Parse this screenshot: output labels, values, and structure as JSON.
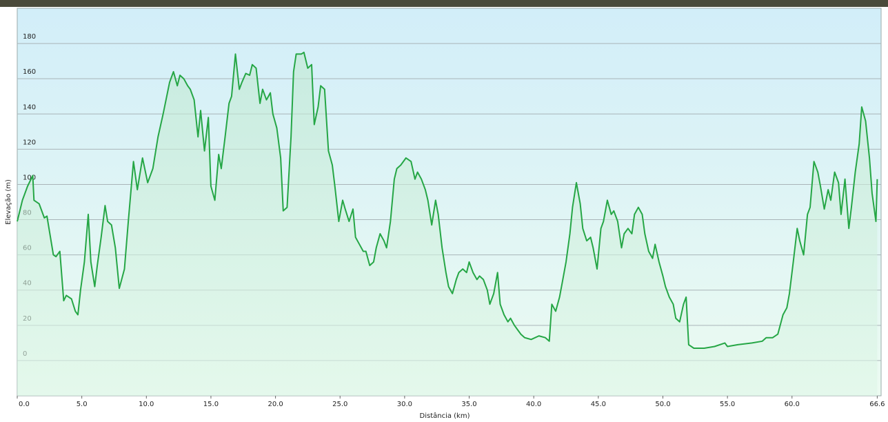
{
  "chart_data": {
    "type": "line",
    "x_label": "Distância  (km)",
    "y_label": "Elevação (m)",
    "series": [
      {
        "color": "#25a645",
        "x": [
          0.0,
          0.4,
          0.8,
          1.2,
          1.3,
          1.7,
          2.1,
          2.3,
          2.8,
          3.0,
          3.3,
          3.6,
          3.8,
          4.2,
          4.5,
          4.7,
          4.9,
          5.2,
          5.5,
          5.7,
          6.0,
          6.2,
          6.5,
          6.8,
          7.0,
          7.3,
          7.6,
          7.9,
          8.3,
          8.6,
          9.0,
          9.3,
          9.7,
          10.1,
          10.5,
          10.9,
          11.3,
          11.8,
          12.1,
          12.4,
          12.6,
          12.9,
          13.2,
          13.4,
          13.7,
          14.0,
          14.2,
          14.5,
          14.8,
          15.0,
          15.3,
          15.6,
          15.8,
          16.1,
          16.4,
          16.6,
          16.9,
          17.2,
          17.4,
          17.7,
          18.0,
          18.2,
          18.5,
          18.8,
          19.0,
          19.3,
          19.6,
          19.8,
          20.1,
          20.4,
          20.6,
          20.9,
          21.2,
          21.4,
          21.6,
          22.0,
          22.2,
          22.5,
          22.8,
          23.0,
          23.3,
          23.5,
          23.8,
          24.1,
          24.4,
          24.6,
          24.9,
          25.2,
          25.4,
          25.7,
          26.0,
          26.2,
          26.5,
          26.8,
          27.0,
          27.3,
          27.6,
          27.8,
          28.1,
          28.4,
          28.6,
          28.9,
          29.2,
          29.4,
          29.7,
          30.1,
          30.5,
          30.8,
          31.0,
          31.3,
          31.6,
          31.8,
          32.1,
          32.4,
          32.6,
          32.9,
          33.2,
          33.4,
          33.7,
          34.0,
          34.2,
          34.5,
          34.8,
          35.0,
          35.3,
          35.6,
          35.8,
          36.1,
          36.4,
          36.6,
          36.9,
          37.2,
          37.4,
          37.7,
          38.0,
          38.2,
          38.5,
          38.8,
          39.0,
          39.3,
          39.8,
          40.4,
          40.9,
          41.2,
          41.4,
          41.7,
          42.0,
          42.2,
          42.5,
          42.8,
          43.0,
          43.3,
          43.6,
          43.8,
          44.1,
          44.4,
          44.6,
          44.9,
          45.2,
          45.4,
          45.7,
          46.0,
          46.2,
          46.5,
          46.8,
          47.0,
          47.3,
          47.6,
          47.8,
          48.1,
          48.4,
          48.6,
          48.9,
          49.2,
          49.4,
          49.7,
          50.0,
          50.2,
          50.5,
          50.8,
          51.0,
          51.3,
          51.6,
          51.8,
          52.0,
          52.4,
          53.2,
          54.0,
          54.8,
          55.0,
          55.8,
          56.9,
          57.7,
          58.0,
          58.5,
          58.9,
          59.3,
          59.6,
          59.8,
          60.1,
          60.4,
          60.6,
          60.9,
          61.2,
          61.4,
          61.7,
          62.0,
          62.2,
          62.5,
          62.8,
          63.0,
          63.3,
          63.6,
          63.8,
          64.1,
          64.4,
          64.6,
          64.9,
          65.2,
          65.4,
          65.7,
          66.0,
          66.2,
          66.5,
          66.6
        ],
        "values": [
          79,
          91,
          99,
          105,
          91,
          89,
          81,
          82,
          60,
          59,
          62,
          34,
          37,
          35,
          28,
          26,
          40,
          56,
          83,
          56,
          42,
          54,
          70,
          88,
          79,
          77,
          64,
          41,
          52,
          79,
          113,
          97,
          115,
          101,
          109,
          127,
          140,
          158,
          164,
          156,
          162,
          160,
          156,
          154,
          148,
          127,
          142,
          119,
          138,
          99,
          91,
          117,
          109,
          127,
          146,
          150,
          174,
          154,
          158,
          163,
          162,
          168,
          166,
          146,
          154,
          148,
          152,
          140,
          132,
          115,
          85,
          87,
          127,
          164,
          174,
          174,
          175,
          166,
          168,
          134,
          144,
          156,
          154,
          119,
          111,
          99,
          79,
          91,
          86,
          79,
          86,
          70,
          66,
          62,
          62,
          54,
          56,
          64,
          72,
          68,
          64,
          79,
          103,
          109,
          111,
          115,
          113,
          103,
          107,
          103,
          97,
          91,
          77,
          91,
          83,
          64,
          50,
          42,
          38,
          46,
          50,
          52,
          50,
          56,
          50,
          46,
          48,
          46,
          40,
          32,
          38,
          50,
          32,
          26,
          22,
          24,
          20,
          17,
          15,
          13,
          12,
          14,
          13,
          11,
          32,
          28,
          36,
          44,
          56,
          72,
          87,
          101,
          89,
          75,
          68,
          70,
          64,
          52,
          75,
          79,
          91,
          83,
          85,
          79,
          64,
          72,
          75,
          72,
          83,
          87,
          83,
          72,
          62,
          58,
          66,
          56,
          48,
          42,
          36,
          32,
          24,
          22,
          32,
          36,
          9,
          7,
          7,
          8,
          10,
          8,
          9,
          10,
          11,
          13,
          13,
          15,
          26,
          30,
          38,
          56,
          75,
          68,
          60,
          83,
          87,
          113,
          107,
          99,
          86,
          97,
          91,
          107,
          101,
          83,
          103,
          75,
          87,
          107,
          123,
          144,
          136,
          115,
          95,
          79,
          103
        ]
      }
    ],
    "xlim": [
      0,
      66.9
    ],
    "ylim": [
      -20,
      200
    ],
    "xticks": [
      {
        "value": 0,
        "label": "0.0"
      },
      {
        "value": 5,
        "label": "5.0"
      },
      {
        "value": 10,
        "label": "10.0"
      },
      {
        "value": 15,
        "label": "15.0"
      },
      {
        "value": 20,
        "label": "20.0"
      },
      {
        "value": 25,
        "label": "25.0"
      },
      {
        "value": 30,
        "label": "30.0"
      },
      {
        "value": 35,
        "label": "35.0"
      },
      {
        "value": 40,
        "label": "40.0"
      },
      {
        "value": 45,
        "label": "45.0"
      },
      {
        "value": 50,
        "label": "50.0"
      },
      {
        "value": 55,
        "label": "55.0"
      },
      {
        "value": 60,
        "label": "60.0"
      },
      66.6
    ],
    "yticks": [
      0,
      20,
      40,
      60,
      80,
      100,
      120,
      140,
      160,
      180
    ],
    "grid": true
  }
}
